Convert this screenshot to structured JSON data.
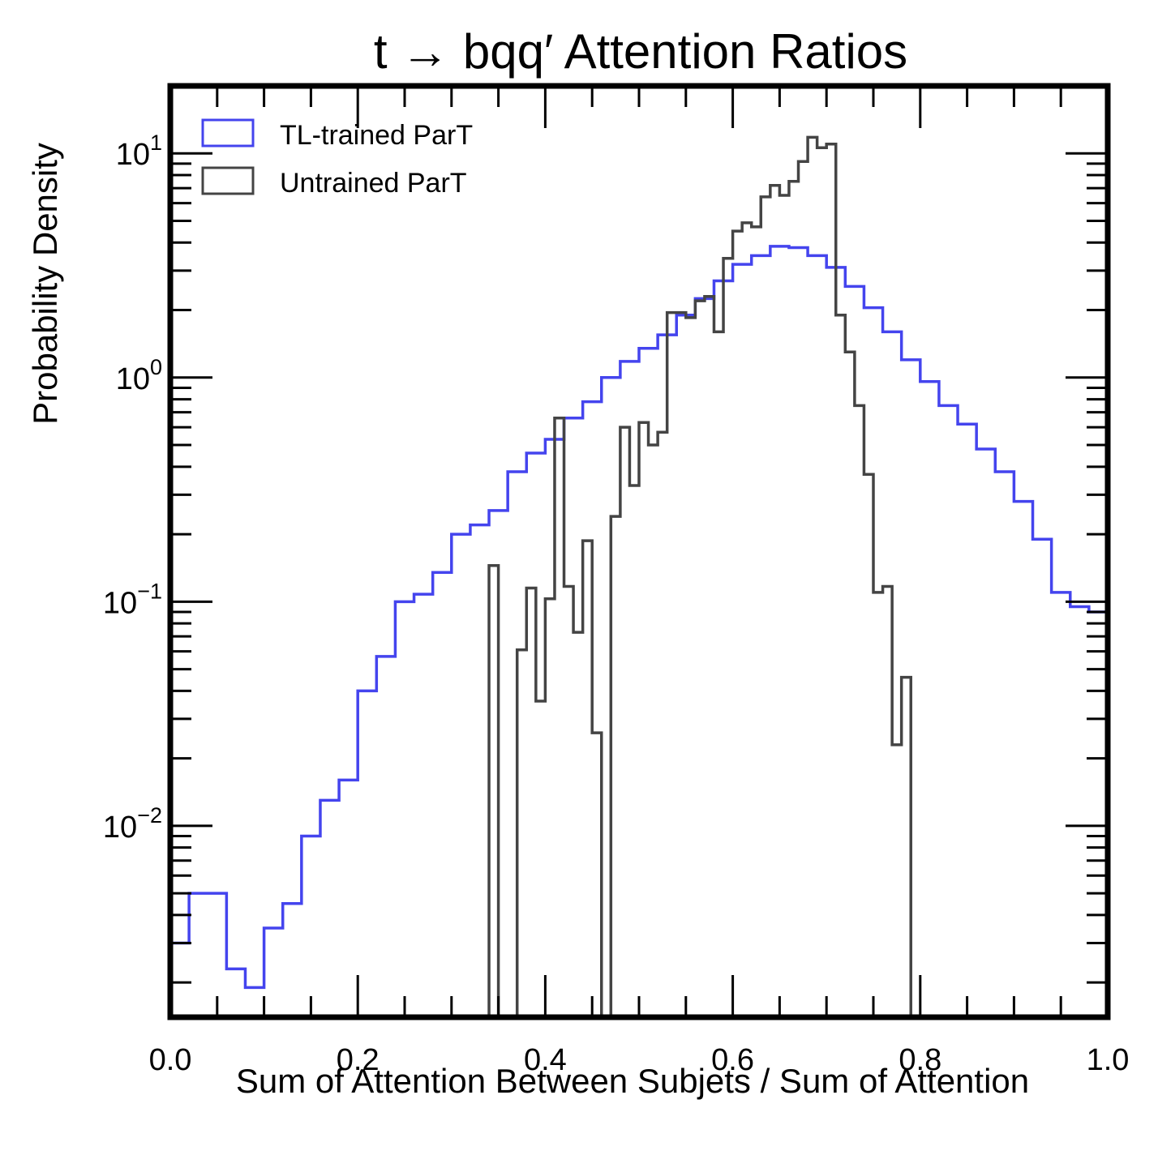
{
  "chart_data": {
    "type": "histogram",
    "title": "t → bqq′ Attention Ratios",
    "xlabel": "Sum of Attention Between Subjets / Sum of Attention",
    "ylabel": "Probability Density",
    "xlim": [
      0.0,
      1.0
    ],
    "ylim": [
      0.0014,
      20.0
    ],
    "yscale": "log",
    "grid": false,
    "legend": "top-left",
    "x_ticks": [
      {
        "value": 0.0,
        "label": "0.0"
      },
      {
        "value": 0.2,
        "label": "0.2"
      },
      {
        "value": 0.4,
        "label": "0.4"
      },
      {
        "value": 0.6,
        "label": "0.6"
      },
      {
        "value": 0.8,
        "label": "0.8"
      },
      {
        "value": 1.0,
        "label": "1.0"
      }
    ],
    "y_ticks": [
      {
        "value": 10,
        "base": "10",
        "exp": "1"
      },
      {
        "value": 1,
        "base": "10",
        "exp": "0"
      },
      {
        "value": 0.1,
        "base": "10",
        "exp": "−1"
      },
      {
        "value": 0.01,
        "base": "10",
        "exp": "−2"
      }
    ],
    "series": [
      {
        "name": "TL-trained ParT",
        "color": "#4444ee",
        "bin_start": 0.0,
        "bin_width": 0.02,
        "values": [
          0.003,
          0.005,
          0.005,
          0.0023,
          0.0019,
          0.0035,
          0.0045,
          0.009,
          0.013,
          0.016,
          0.04,
          0.057,
          0.1,
          0.108,
          0.135,
          0.2,
          0.22,
          0.255,
          0.38,
          0.46,
          0.53,
          0.66,
          0.78,
          1.0,
          1.18,
          1.35,
          1.55,
          1.9,
          2.25,
          2.7,
          3.2,
          3.5,
          3.85,
          3.8,
          3.5,
          3.1,
          2.55,
          2.05,
          1.6,
          1.2,
          0.96,
          0.75,
          0.62,
          0.48,
          0.38,
          0.28,
          0.19,
          0.11,
          0.095,
          0.09
        ]
      },
      {
        "name": "Untrained ParT",
        "color": "#444444",
        "bin_start": 0.0,
        "bin_width": 0.01,
        "values": [
          0,
          0,
          0,
          0,
          0,
          0,
          0,
          0,
          0,
          0,
          0,
          0,
          0,
          0,
          0,
          0,
          0,
          0,
          0,
          0,
          0,
          0,
          0,
          0,
          0,
          0,
          0,
          0,
          0,
          0,
          0,
          0,
          0,
          0,
          0.145,
          0,
          0,
          0.061,
          0.115,
          0.036,
          0.103,
          0.66,
          0.117,
          0.073,
          0.187,
          0.026,
          0,
          0.24,
          0.6,
          0.33,
          0.63,
          0.5,
          0.57,
          1.95,
          1.95,
          1.85,
          2.2,
          2.3,
          1.6,
          3.4,
          4.5,
          4.9,
          4.7,
          6.4,
          7.2,
          6.5,
          7.5,
          9.2,
          11.8,
          10.6,
          11.0,
          1.9,
          1.3,
          0.75,
          0.37,
          0.11,
          0.117,
          0.023,
          0.046,
          0,
          0,
          0,
          0,
          0,
          0,
          0,
          0,
          0,
          0,
          0,
          0,
          0,
          0,
          0,
          0,
          0,
          0,
          0,
          0,
          0
        ]
      }
    ]
  }
}
